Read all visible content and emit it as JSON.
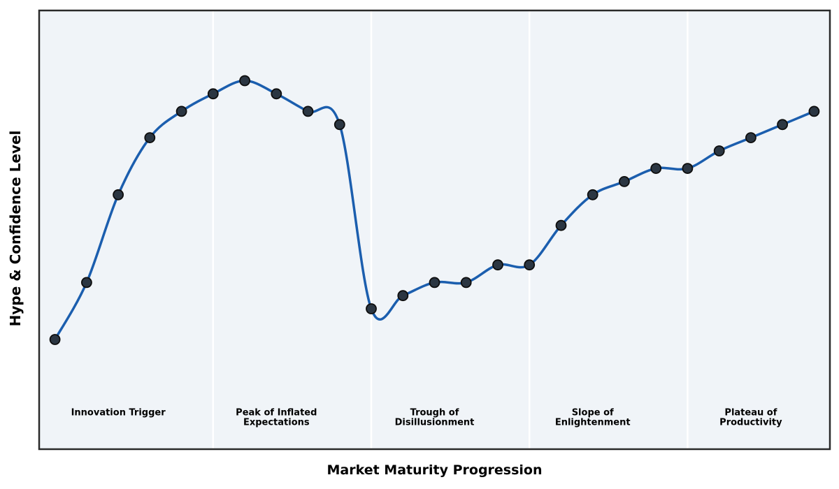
{
  "chart_data": {
    "type": "line",
    "title": "",
    "xlabel": "Market Maturity Progression",
    "ylabel": "Hype & Confidence Level",
    "x": [
      0,
      1,
      2,
      3,
      4,
      5,
      6,
      7,
      8,
      9,
      10,
      11,
      12,
      13,
      14,
      15,
      16,
      17,
      18,
      19,
      20,
      21,
      22,
      23,
      24
    ],
    "series": [
      {
        "name": "Hype & Confidence Level",
        "values": [
          25,
          38,
          58,
          71,
          77,
          81,
          84,
          81,
          77,
          74,
          32,
          35,
          38,
          38,
          42,
          42,
          51,
          58,
          61,
          64,
          64,
          68,
          71,
          74,
          77
        ]
      }
    ],
    "xlim": [
      -0.5,
      24.5
    ],
    "ylim": [
      0,
      100
    ],
    "grid": false,
    "legend": "none",
    "axis_ticks": "none",
    "styles": {
      "line_color": "#1b5eae",
      "marker_fill": "#2b3642",
      "marker_edge": "#0d0d0d",
      "plot_bg": "#f0f4f8",
      "separator_color": "#ffffff",
      "frame_color": "#2a2a2a",
      "figure_bg": "#ffffff",
      "label_color": "#000000"
    },
    "separators_at": [
      5,
      10,
      15,
      20
    ],
    "phases": [
      {
        "label": "Innovation Trigger",
        "label_lines": [
          "Innovation Trigger"
        ],
        "band_start": -0.5,
        "band_end": 5,
        "label_x": 2
      },
      {
        "label": "Peak of Inflated Expectations",
        "label_lines": [
          "Peak of Inflated",
          "Expectations"
        ],
        "band_start": 5,
        "band_end": 10,
        "label_x": 7
      },
      {
        "label": "Trough of Disillusionment",
        "label_lines": [
          "Trough of",
          "Disillusionment"
        ],
        "band_start": 10,
        "band_end": 15,
        "label_x": 12
      },
      {
        "label": "Slope of Enlightenment",
        "label_lines": [
          "Slope of",
          "Enlightenment"
        ],
        "band_start": 15,
        "band_end": 20,
        "label_x": 17
      },
      {
        "label": "Plateau of Productivity",
        "label_lines": [
          "Plateau of",
          "Productivity"
        ],
        "band_start": 20,
        "band_end": 24.5,
        "label_x": 22
      }
    ]
  }
}
